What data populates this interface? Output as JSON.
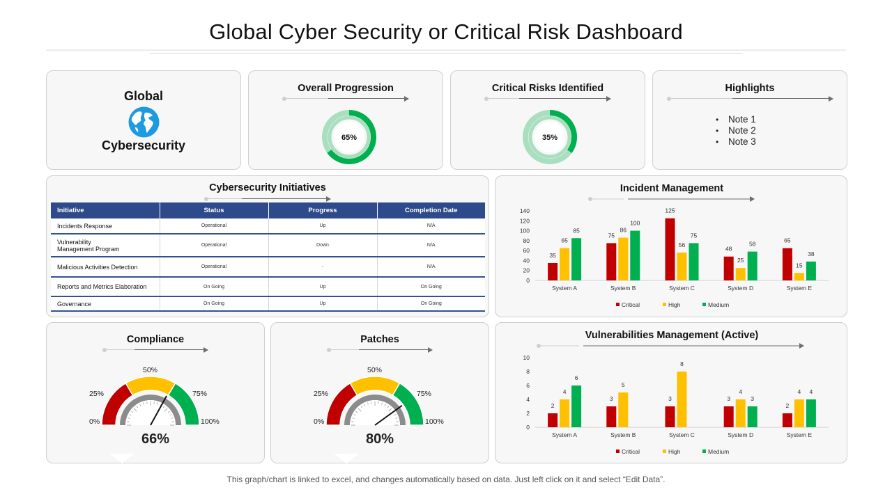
{
  "page_title": "Global Cyber Security or Critical Risk Dashboard",
  "global": {
    "line1": "Global",
    "line2": "Cybersecurity"
  },
  "overall": {
    "title": "Overall Progression",
    "value_label": "65%",
    "value": 0.65
  },
  "critical": {
    "title": "Critical Risks Identified",
    "value_label": "35%",
    "value": 0.35
  },
  "highlights": {
    "title": "Highlights",
    "notes": [
      "Note 1",
      "Note 2",
      "Note 3"
    ]
  },
  "initiatives": {
    "title": "Cybersecurity Initiatives",
    "headers": [
      "Initiative",
      "Status",
      "Progress",
      "Completion Date"
    ],
    "rows": [
      [
        "Incidents Response",
        "Operational",
        "Up",
        "N/A"
      ],
      [
        "Vulnerability Management Program",
        "Operational",
        "Down",
        "N/A"
      ],
      [
        "Malicious Activities Detection",
        "Operational",
        "-",
        "N/A"
      ],
      [
        "Reports and Metrics Elaboration",
        "On Going",
        "Up",
        "On Going"
      ],
      [
        "Governance",
        "On Going",
        "Up",
        "On Going"
      ]
    ]
  },
  "compliance": {
    "title": "Compliance",
    "value_label": "66%",
    "value": 0.66,
    "ticks": [
      "0%",
      "25%",
      "50%",
      "75%",
      "100%"
    ]
  },
  "patches": {
    "title": "Patches",
    "value_label": "80%",
    "value": 0.8,
    "ticks": [
      "0%",
      "25%",
      "50%",
      "75%",
      "100%"
    ]
  },
  "colors": {
    "critical": "#c00000",
    "high": "#ffc000",
    "medium": "#00b050",
    "table_header": "#2f4a8a",
    "donut_dark": "#00b050",
    "donut_light": "#a9dfbf"
  },
  "chart_data": [
    {
      "type": "bar",
      "title": "Incident Management",
      "categories": [
        "System A",
        "System B",
        "System C",
        "System D",
        "System E"
      ],
      "series": [
        {
          "name": "Critical",
          "values": [
            35,
            75,
            125,
            48,
            65
          ]
        },
        {
          "name": "High",
          "values": [
            65,
            86,
            56,
            25,
            15
          ]
        },
        {
          "name": "Medium",
          "values": [
            85,
            100,
            75,
            58,
            38
          ]
        }
      ],
      "ylim": [
        0,
        140
      ],
      "yticks": [
        0,
        20,
        40,
        60,
        80,
        100,
        120,
        140
      ],
      "legend": "bottom"
    },
    {
      "type": "bar",
      "title": "Vulnerabilities Management (Active)",
      "categories": [
        "System A",
        "System B",
        "System C",
        "System D",
        "System E"
      ],
      "series": [
        {
          "name": "Critical",
          "values": [
            2,
            3,
            3,
            3,
            2
          ]
        },
        {
          "name": "High",
          "values": [
            4,
            5,
            8,
            4,
            4
          ]
        },
        {
          "name": "Medium",
          "values": [
            6,
            null,
            null,
            3,
            4
          ]
        }
      ],
      "ylim": [
        0,
        10
      ],
      "yticks": [
        0,
        2,
        4,
        6,
        8,
        10
      ],
      "legend": "bottom"
    }
  ],
  "footer": "This graph/chart is linked to excel, and changes automatically based on data. Just left click on it and select “Edit Data”."
}
